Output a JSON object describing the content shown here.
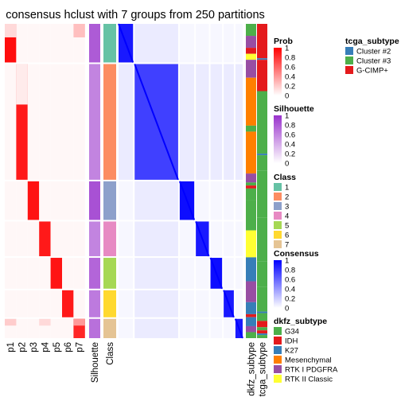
{
  "chart_data": {
    "type": "heatmap",
    "title": "consensus hclust with 7 groups from 250 partitions",
    "group_order": [
      1,
      2,
      3,
      4,
      5,
      6,
      7
    ],
    "group_sizes": [
      50,
      150,
      50,
      45,
      40,
      35,
      25
    ],
    "membership_columns": [
      "p1",
      "p2",
      "p3",
      "p4",
      "p5",
      "p6",
      "p7"
    ],
    "membership_main_prob": [
      0.95,
      0.9,
      0.93,
      0.9,
      0.92,
      0.9,
      0.85
    ],
    "silhouette_label": "Silhouette",
    "class_label": "Class",
    "silhouette_values": [
      0.8,
      0.6,
      0.85,
      0.6,
      0.75,
      0.65,
      0.7
    ],
    "consensus_within": [
      0.9,
      0.75,
      0.95,
      0.9,
      0.95,
      0.9,
      0.9
    ],
    "annotation_columns": [
      "dkfz_subtype",
      "tcga_subtype"
    ],
    "dkfz_blocks": [
      [
        "G34",
        0.04
      ],
      [
        "RTK I PDGFRA",
        0.04
      ],
      [
        "IDH",
        0.02
      ],
      [
        "RTK II Classic",
        0.02
      ],
      [
        "RTK I PDGFRA",
        0.06
      ],
      [
        "Mesenchymal",
        0.16
      ],
      [
        "G34",
        0.02
      ],
      [
        "Mesenchymal",
        0.14
      ],
      [
        "RTK I PDGFRA",
        0.03
      ],
      [
        "G34",
        0.01
      ],
      [
        "IDH",
        0.01
      ],
      [
        "G34",
        0.04
      ],
      [
        "G34",
        0.1
      ],
      [
        "RTK II Classic",
        0.09
      ],
      [
        "K27",
        0.08
      ],
      [
        "RTK I PDGFRA",
        0.07
      ],
      [
        "K27",
        0.04
      ],
      [
        "IDH",
        0.01
      ],
      [
        "K27",
        0.03
      ],
      [
        "RTK I PDGFRA",
        0.02
      ],
      [
        "G34",
        0.02
      ]
    ],
    "tcga_blocks": [
      [
        "G-CIMP+",
        0.11
      ],
      [
        "Cluster #2",
        0.005
      ],
      [
        "G-CIMP+",
        0.1
      ],
      [
        "Cluster #3",
        0.2
      ],
      [
        "Cluster #2",
        0.005
      ],
      [
        "Cluster #3",
        0.05
      ],
      [
        "Cluster #3",
        0.15
      ],
      [
        "Cluster #3",
        0.14
      ],
      [
        "Cluster #3",
        0.08
      ],
      [
        "Cluster #3",
        0.08
      ],
      [
        "Cluster #2",
        0.005
      ],
      [
        "Cluster #3",
        0.025
      ],
      [
        "G-CIMP+",
        0.02
      ],
      [
        "Cluster #3",
        0.01
      ],
      [
        "G-CIMP+",
        0.01
      ],
      [
        "Cluster #2",
        0.005
      ],
      [
        "Cluster #3",
        0.01
      ]
    ],
    "legends": {
      "prob": {
        "title": "Prob",
        "labels": [
          "1",
          "0.8",
          "0.6",
          "0.4",
          "0.2",
          "0"
        ],
        "low": "#ffffff",
        "high": "#ff0000"
      },
      "silhouette": {
        "title": "Silhouette",
        "labels": [
          "1",
          "0.8",
          "0.6",
          "0.4",
          "0.2",
          "0"
        ],
        "low": "#ffffff",
        "high": "#9932cc"
      },
      "class": {
        "title": "Class",
        "items": [
          {
            "label": "1",
            "color": "#66c2a5"
          },
          {
            "label": "2",
            "color": "#fc8d62"
          },
          {
            "label": "3",
            "color": "#8da0cb"
          },
          {
            "label": "4",
            "color": "#e78ac3"
          },
          {
            "label": "5",
            "color": "#a6d854"
          },
          {
            "label": "6",
            "color": "#ffd92f"
          },
          {
            "label": "7",
            "color": "#e5c494"
          }
        ]
      },
      "consensus": {
        "title": "Consensus",
        "labels": [
          "1",
          "0.8",
          "0.6",
          "0.4",
          "0.2",
          "0"
        ],
        "low": "#ffffff",
        "high": "#0000ff"
      },
      "dkfz_subtype": {
        "title": "dkfz_subtype",
        "items": [
          {
            "label": "G34",
            "color": "#4daf4a"
          },
          {
            "label": "IDH",
            "color": "#e41a1c"
          },
          {
            "label": "K27",
            "color": "#377eb8"
          },
          {
            "label": "Mesenchymal",
            "color": "#ff7f00"
          },
          {
            "label": "RTK I PDGFRA",
            "color": "#984ea3"
          },
          {
            "label": "RTK II Classic",
            "color": "#ffff33"
          }
        ]
      },
      "tcga_subtype": {
        "title": "tcga_subtype",
        "items": [
          {
            "label": "Cluster #2",
            "color": "#377eb8"
          },
          {
            "label": "Cluster #3",
            "color": "#4daf4a"
          },
          {
            "label": "G-CIMP+",
            "color": "#e41a1c"
          }
        ]
      }
    }
  }
}
